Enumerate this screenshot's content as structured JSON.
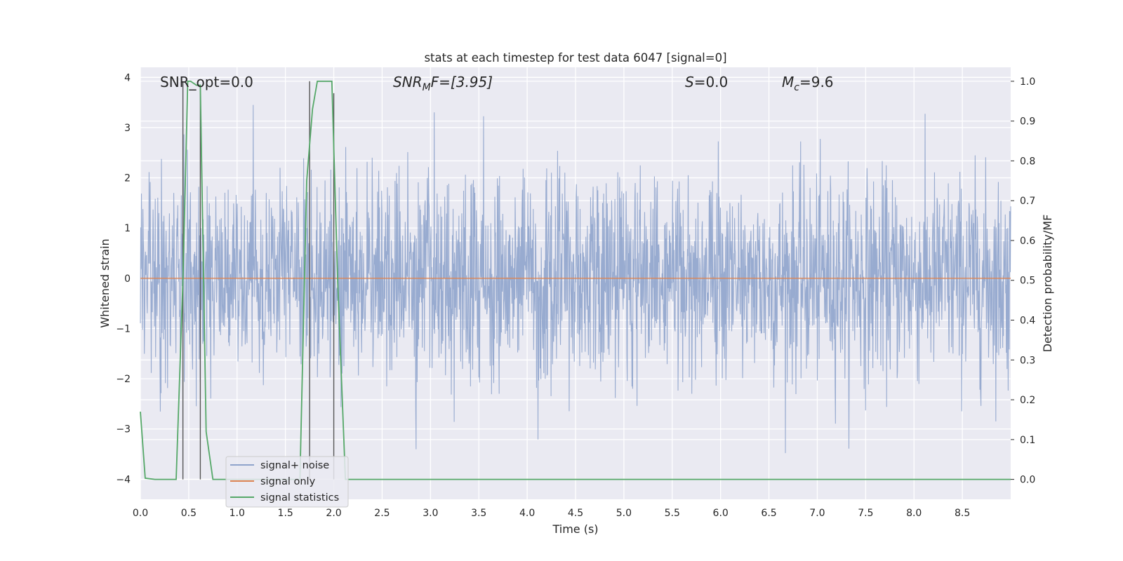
{
  "chart_data": {
    "type": "line",
    "title": "stats at each timestep for test data 6047 [signal=0]",
    "xlabel": "Time (s)",
    "ylabel_left": "Whitened strain",
    "ylabel_right": "Detection probability/MF",
    "xlim": [
      0.0,
      9.0
    ],
    "ylim_left": [
      -4.4,
      4.2
    ],
    "ylim_right": [
      -0.05,
      1.035
    ],
    "xticks": [
      "0.0",
      "0.5",
      "1.0",
      "1.5",
      "2.0",
      "2.5",
      "3.0",
      "3.5",
      "4.0",
      "4.5",
      "5.0",
      "5.5",
      "6.0",
      "6.5",
      "7.0",
      "7.5",
      "8.0",
      "8.5"
    ],
    "yticks_left": [
      "4",
      "3",
      "2",
      "1",
      "0",
      "−1",
      "−2",
      "−3",
      "−4"
    ],
    "yticks_right": [
      "1.0",
      "0.9",
      "0.8",
      "0.7",
      "0.6",
      "0.5",
      "0.4",
      "0.3",
      "0.2",
      "0.1",
      "0.0"
    ],
    "grid": true,
    "legend_position": "lower-left",
    "annotations": {
      "snr_opt": "SNR_opt=0.0",
      "snr_mf_main": "SNR",
      "snr_mf_sub": "M",
      "snr_mf_rest": "F=[3.95]",
      "s_main": "S",
      "s_rest": "=0.0",
      "mc_main": "M",
      "mc_sub": "c",
      "mc_rest": "=9.6"
    },
    "series": [
      {
        "name": "signal+ noise",
        "color": "#8fa4cc",
        "kind": "noise",
        "approx_std": 1.0,
        "approx_range": [
          -4.0,
          3.8
        ]
      },
      {
        "name": "signal only",
        "color": "#dd8452",
        "x": [
          0.0,
          9.0
        ],
        "y": [
          0.0,
          0.0
        ]
      },
      {
        "name": "signal statistics",
        "color": "#55a868",
        "axis": "right",
        "x": [
          0.0,
          0.05,
          0.15,
          0.37,
          0.44,
          0.49,
          0.52,
          0.58,
          0.62,
          0.68,
          0.75,
          1.65,
          1.72,
          1.78,
          1.83,
          1.9,
          1.98,
          2.04,
          2.12,
          9.0
        ],
        "y": [
          0.17,
          0.003,
          0.0,
          0.0,
          0.5,
          1.0,
          1.0,
          0.99,
          0.99,
          0.12,
          0.0,
          0.0,
          0.75,
          0.93,
          1.0,
          1.0,
          1.0,
          0.5,
          0.0,
          0.0
        ]
      },
      {
        "name": "",
        "color": "#555555",
        "kind": "markers",
        "axis": "right",
        "segments": [
          {
            "x": 0.44,
            "y0": 0.0,
            "y1": 1.0
          },
          {
            "x": 0.62,
            "y0": 0.0,
            "y1": 0.99
          },
          {
            "x": 1.75,
            "y0": 0.0,
            "y1": 1.0
          },
          {
            "x": 2.0,
            "y0": 0.0,
            "y1": 0.97
          }
        ]
      }
    ]
  }
}
